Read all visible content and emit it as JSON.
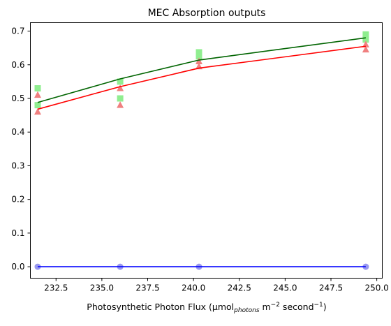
{
  "chart_data": {
    "type": "scatter",
    "title": "MEC Absorption outputs",
    "xlabel": {
      "prefix": "Photosynthetic Photon Flux (µmol",
      "sub": "photons",
      "mid": " m",
      "sup1": "−2",
      "mid2": " second",
      "sup2": "−1",
      "suffix": ")"
    },
    "ylabel": "",
    "xlim": [
      231.1,
      250.3
    ],
    "ylim": [
      -0.034,
      0.725
    ],
    "xticks": [
      232.5,
      235.0,
      237.5,
      240.0,
      242.5,
      245.0,
      247.5,
      250.0
    ],
    "xtick_labels": [
      "232.5",
      "235.0",
      "237.5",
      "240.0",
      "242.5",
      "245.0",
      "247.5",
      "250.0"
    ],
    "yticks": [
      0.0,
      0.1,
      0.2,
      0.3,
      0.4,
      0.5,
      0.6,
      0.7
    ],
    "ytick_labels": [
      "0.0",
      "0.1",
      "0.2",
      "0.3",
      "0.4",
      "0.5",
      "0.6",
      "0.7"
    ],
    "grid": false,
    "x_groups": [
      231.5,
      236.0,
      240.3,
      249.4
    ],
    "series": [
      {
        "marker": "square",
        "color": "#90ee90",
        "line_color": "#006400",
        "points": [
          [
            231.5,
            0.53
          ],
          [
            231.5,
            0.48
          ],
          [
            236.0,
            0.55
          ],
          [
            236.0,
            0.5
          ],
          [
            240.3,
            0.637
          ],
          [
            240.3,
            0.625
          ],
          [
            249.4,
            0.69
          ],
          [
            249.4,
            0.675
          ]
        ],
        "fit": [
          0.488,
          0.558,
          0.614,
          0.68
        ]
      },
      {
        "marker": "triangle",
        "color": "#f08080",
        "line_color": "#ff0000",
        "points": [
          [
            231.5,
            0.51
          ],
          [
            231.5,
            0.46
          ],
          [
            236.0,
            0.53
          ],
          [
            236.0,
            0.48
          ],
          [
            240.3,
            0.61
          ],
          [
            240.3,
            0.595
          ],
          [
            249.4,
            0.66
          ],
          [
            249.4,
            0.645
          ]
        ],
        "fit": [
          0.468,
          0.535,
          0.59,
          0.655
        ]
      },
      {
        "marker": "circle",
        "color": "#9999ee",
        "line_color": "#0000ff",
        "points": [
          [
            231.5,
            0.0
          ],
          [
            236.0,
            0.0
          ],
          [
            240.3,
            0.0
          ],
          [
            249.4,
            0.0
          ]
        ],
        "fit": [
          0.0,
          0.0,
          0.0,
          0.0
        ]
      }
    ]
  }
}
